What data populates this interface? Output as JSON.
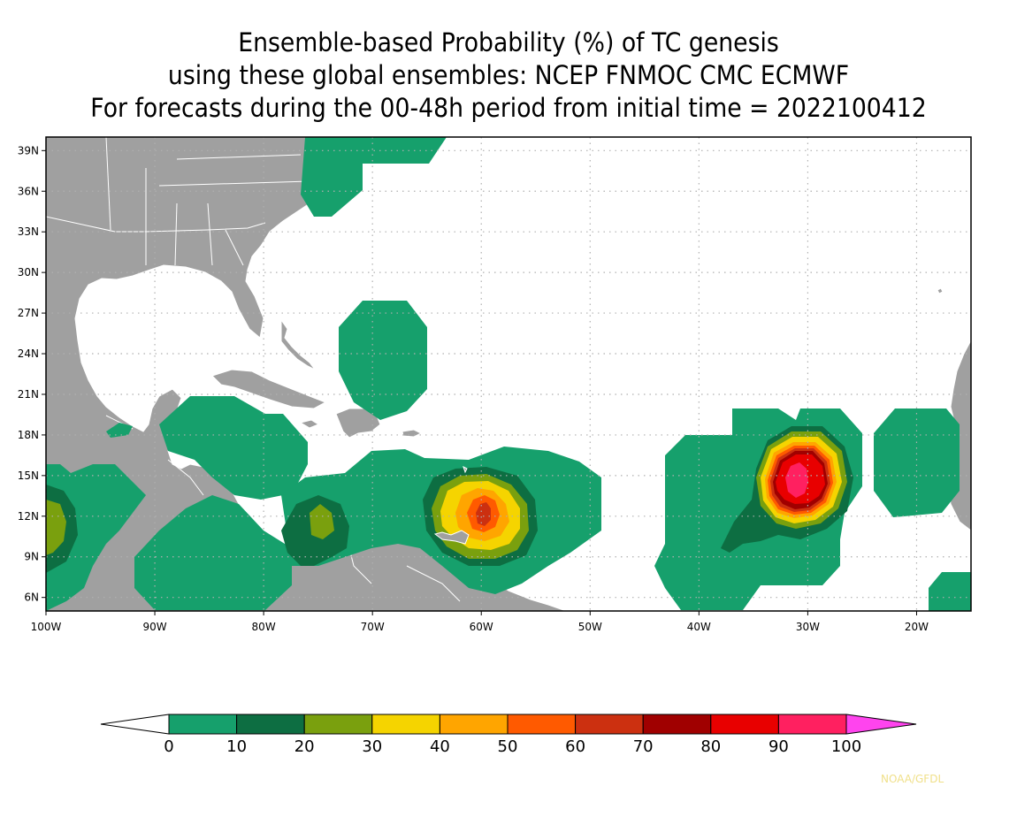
{
  "title": {
    "line1": "Ensemble-based Probability (%) of TC genesis",
    "line2": "using these global ensembles:   NCEP FNMOC CMC ECMWF",
    "line3": "For forecasts during the 00-48h period from initial time = 2022100412"
  },
  "map": {
    "lon_range": [
      -100,
      -15
    ],
    "lat_range": [
      5,
      40
    ],
    "land_color": "#a0a0a0",
    "ocean_color": "#ffffff",
    "grid": "dotted",
    "lat_labels": [
      "39N",
      "36N",
      "33N",
      "30N",
      "27N",
      "24N",
      "21N",
      "18N",
      "15N",
      "12N",
      "9N",
      "6N"
    ],
    "lon_labels": [
      "100W",
      "90W",
      "80W",
      "70W",
      "60W",
      "50W",
      "40W",
      "30W",
      "20W"
    ]
  },
  "colorbar": {
    "labels": [
      "0",
      "10",
      "20",
      "30",
      "40",
      "50",
      "60",
      "70",
      "80",
      "90",
      "100"
    ],
    "colors": [
      "#16a06c",
      "#0d6e42",
      "#7aa00e",
      "#f5d400",
      "#ffa500",
      "#ff5a00",
      "#cc3010",
      "#a00000",
      "#e80000",
      "#ff2060",
      "#ff44ee"
    ],
    "low_end_color": "#ffffff"
  },
  "credit": "NOAA/GFDL"
}
